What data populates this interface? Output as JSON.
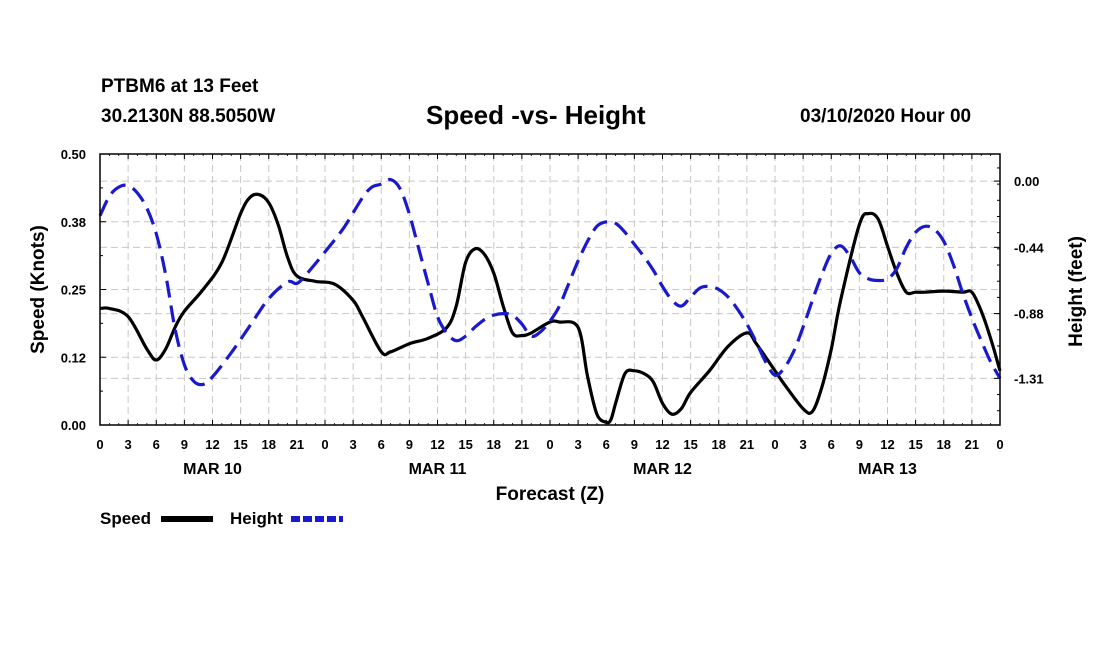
{
  "header": {
    "station": "PTBM6 at 13 Feet",
    "coordinates": "30.2130N 88.5050W",
    "title": "Speed -vs- Height",
    "datetime": "03/10/2020 Hour 00"
  },
  "chart_data": {
    "type": "line",
    "title": "Speed -vs- Height",
    "xlabel": "Forecast (Z)",
    "ylabel": "Speed (Knots)",
    "y2label": "Height (feet)",
    "x_unit": "hours from 03/10/2020 00Z",
    "x_range": [
      0,
      96
    ],
    "x_tick_hours": [
      0,
      3,
      6,
      9,
      12,
      15,
      18,
      21,
      24,
      27,
      30,
      33,
      36,
      39,
      42,
      45,
      48,
      51,
      54,
      57,
      60,
      63,
      66,
      69,
      72,
      75,
      78,
      81,
      84,
      87,
      90,
      93,
      96
    ],
    "x_tick_labels": [
      "0",
      "3",
      "6",
      "9",
      "12",
      "15",
      "18",
      "21",
      "0",
      "3",
      "6",
      "9",
      "12",
      "15",
      "18",
      "21",
      "0",
      "3",
      "6",
      "9",
      "12",
      "15",
      "18",
      "21",
      "0",
      "3",
      "6",
      "9",
      "12",
      "15",
      "18",
      "21",
      "0"
    ],
    "day_labels": [
      {
        "hour": 12,
        "label": "MAR 10"
      },
      {
        "hour": 36,
        "label": "MAR 11"
      },
      {
        "hour": 60,
        "label": "MAR 12"
      },
      {
        "hour": 84,
        "label": "MAR 13"
      }
    ],
    "y_left": {
      "range": [
        0.0,
        0.5
      ],
      "ticks": [
        0.0,
        0.125,
        0.25,
        0.375,
        0.5
      ],
      "tick_labels": [
        "0.00",
        "0.12",
        "0.25",
        "0.38",
        "0.50"
      ]
    },
    "y_right": {
      "range": [
        -1.62,
        0.18
      ],
      "ticks": [
        -1.31,
        -0.88,
        -0.44,
        0.0
      ],
      "tick_labels": [
        "-1.31",
        "-0.88",
        "-0.44",
        "0.00"
      ]
    },
    "grid": true,
    "series": [
      {
        "name": "Speed",
        "axis": "left",
        "color": "#000000",
        "dash": "solid",
        "x": [
          0,
          1,
          3,
          5,
          6,
          7,
          8,
          9,
          11,
          13,
          15,
          16,
          17,
          18,
          19,
          20,
          21,
          23,
          25,
          27,
          28,
          30,
          31,
          33,
          35,
          37,
          38,
          39,
          40,
          41,
          42,
          43,
          44,
          45,
          46,
          48,
          49,
          51,
          52,
          53,
          54,
          54.5,
          55,
          56,
          57,
          58,
          59,
          60,
          61,
          62,
          63,
          65,
          67,
          69,
          70,
          72,
          73,
          75,
          76,
          77,
          78,
          79,
          81,
          82,
          83,
          84,
          85,
          86,
          87,
          88,
          90,
          92,
          93,
          94,
          95,
          96
        ],
        "values": [
          0.215,
          0.215,
          0.2,
          0.14,
          0.12,
          0.14,
          0.18,
          0.21,
          0.25,
          0.3,
          0.39,
          0.42,
          0.425,
          0.41,
          0.37,
          0.31,
          0.275,
          0.265,
          0.26,
          0.23,
          0.2,
          0.135,
          0.135,
          0.15,
          0.16,
          0.18,
          0.22,
          0.3,
          0.325,
          0.315,
          0.28,
          0.22,
          0.17,
          0.165,
          0.17,
          0.19,
          0.19,
          0.18,
          0.09,
          0.02,
          0.005,
          0.01,
          0.04,
          0.095,
          0.1,
          0.095,
          0.08,
          0.04,
          0.02,
          0.03,
          0.06,
          0.1,
          0.145,
          0.17,
          0.15,
          0.1,
          0.075,
          0.03,
          0.025,
          0.07,
          0.14,
          0.23,
          0.37,
          0.39,
          0.38,
          0.33,
          0.28,
          0.245,
          0.245,
          0.245,
          0.247,
          0.245,
          0.245,
          0.21,
          0.16,
          0.1
        ]
      },
      {
        "name": "Height",
        "axis": "right",
        "color": "#1a1acc",
        "dash": "dashed",
        "x": [
          0,
          1,
          2,
          3,
          4,
          5,
          6,
          7,
          8,
          9,
          10,
          11,
          12,
          14,
          16,
          18,
          20,
          21,
          22,
          24,
          26,
          28,
          29,
          30,
          31,
          32,
          33,
          34,
          35,
          36,
          37,
          38,
          39,
          40,
          41,
          42,
          43,
          44,
          45,
          46,
          47,
          48,
          49,
          50,
          51,
          52,
          53,
          54,
          55,
          56,
          57,
          58,
          59,
          60,
          61,
          62,
          63,
          64,
          65,
          66,
          67,
          68,
          69,
          70,
          71,
          72,
          73,
          74,
          75,
          76,
          77,
          78,
          79,
          80,
          81,
          82,
          83,
          84,
          85,
          86,
          87,
          88,
          89,
          90,
          91,
          92,
          93,
          94,
          95,
          96
        ],
        "values": [
          -0.23,
          -0.1,
          -0.04,
          -0.03,
          -0.08,
          -0.18,
          -0.35,
          -0.62,
          -0.98,
          -1.22,
          -1.33,
          -1.35,
          -1.3,
          -1.14,
          -0.96,
          -0.78,
          -0.67,
          -0.68,
          -0.62,
          -0.47,
          -0.31,
          -0.11,
          -0.04,
          -0.02,
          0.01,
          -0.05,
          -0.22,
          -0.45,
          -0.68,
          -0.9,
          -1.01,
          -1.06,
          -1.03,
          -0.97,
          -0.92,
          -0.89,
          -0.88,
          -0.89,
          -0.95,
          -1.03,
          -1.0,
          -0.93,
          -0.83,
          -0.68,
          -0.53,
          -0.4,
          -0.3,
          -0.27,
          -0.28,
          -0.34,
          -0.42,
          -0.5,
          -0.59,
          -0.7,
          -0.79,
          -0.83,
          -0.77,
          -0.71,
          -0.7,
          -0.72,
          -0.77,
          -0.85,
          -0.95,
          -1.07,
          -1.2,
          -1.29,
          -1.24,
          -1.13,
          -0.97,
          -0.79,
          -0.62,
          -0.48,
          -0.43,
          -0.5,
          -0.61,
          -0.65,
          -0.66,
          -0.65,
          -0.58,
          -0.44,
          -0.34,
          -0.3,
          -0.32,
          -0.4,
          -0.55,
          -0.74,
          -0.91,
          -1.06,
          -1.2,
          -1.31
        ]
      }
    ],
    "legend": {
      "position": "bottom-left",
      "items": [
        {
          "label": "Speed",
          "color": "#000000",
          "dash": "solid"
        },
        {
          "label": "Height",
          "color": "#1a1acc",
          "dash": "dashed"
        }
      ]
    }
  }
}
